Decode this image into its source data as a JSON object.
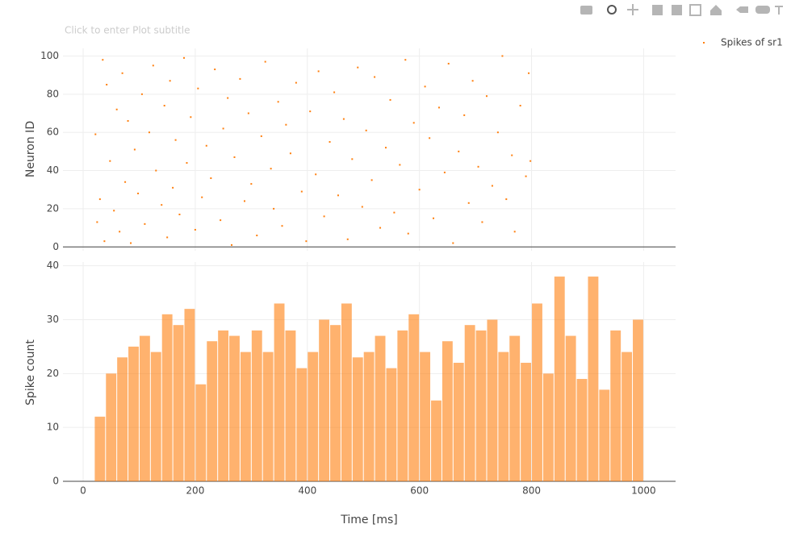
{
  "chart_data": [
    {
      "type": "scatter",
      "subtitle": "Click to enter Plot subtitle",
      "ylabel": "Neuron ID",
      "xlim": [
        -36,
        1057
      ],
      "xticks": [
        0,
        200,
        400,
        600,
        800,
        1000
      ],
      "ylim": [
        -2,
        104
      ],
      "yticks": [
        0,
        20,
        40,
        60,
        80,
        100
      ],
      "grid": true,
      "series": [
        {
          "name": "Spikes of sr1",
          "color": "#ff7f0e",
          "x": [
            22,
            25,
            30,
            35,
            38,
            42,
            48,
            55,
            60,
            65,
            70,
            75,
            80,
            85,
            92,
            98,
            105,
            110,
            118,
            125,
            130,
            140,
            145,
            150,
            155,
            160,
            165,
            172,
            180,
            185,
            192,
            200,
            205,
            212,
            220,
            228,
            235,
            245,
            250,
            258,
            265,
            270,
            280,
            288,
            295,
            300,
            310,
            318,
            325,
            335,
            340,
            348,
            355,
            362,
            370,
            380,
            390,
            398,
            405,
            415,
            420,
            430,
            440,
            448,
            455,
            465,
            472,
            480,
            490,
            498,
            505,
            515,
            520,
            530,
            540,
            548,
            555,
            565,
            575,
            580,
            590,
            600,
            610,
            618,
            625,
            635,
            645,
            652,
            660,
            670,
            680,
            688,
            695,
            705,
            712,
            720,
            730,
            740,
            748,
            755,
            765,
            770,
            780,
            790,
            795,
            798
          ],
          "values": [
            59,
            13,
            25,
            98,
            3,
            85,
            45,
            19,
            72,
            8,
            91,
            34,
            66,
            2,
            51,
            28,
            80,
            12,
            60,
            95,
            40,
            22,
            74,
            5,
            87,
            31,
            56,
            17,
            99,
            44,
            68,
            9,
            83,
            26,
            53,
            36,
            93,
            14,
            62,
            78,
            1,
            47,
            88,
            24,
            70,
            33,
            6,
            58,
            97,
            41,
            20,
            76,
            11,
            64,
            49,
            86,
            29,
            3,
            71,
            38,
            92,
            16,
            55,
            81,
            27,
            67,
            4,
            46,
            94,
            21,
            61,
            35,
            89,
            10,
            52,
            77,
            18,
            43,
            98,
            7,
            65,
            30,
            84,
            57,
            15,
            73,
            39,
            96,
            2,
            50,
            69,
            23,
            87,
            42,
            13,
            79,
            32,
            60,
            100,
            25,
            48,
            8,
            74,
            37,
            91,
            45
          ]
        }
      ]
    },
    {
      "type": "histogram",
      "ylabel": "Spike count",
      "xlabel": "Time [ms]",
      "xlim": [
        -36,
        1057
      ],
      "xticks": [
        0,
        200,
        400,
        600,
        800,
        1000
      ],
      "ylim": [
        0,
        40.7
      ],
      "yticks": [
        0,
        10,
        20,
        30,
        40
      ],
      "grid": true,
      "color": "#ff7f0e",
      "opacity": 0.6,
      "bins": [
        20,
        40,
        60,
        80,
        100,
        120,
        140,
        160,
        180,
        200,
        220,
        240,
        260,
        280,
        300,
        320,
        340,
        360,
        380,
        400,
        420,
        440,
        460,
        480,
        500,
        520,
        540,
        560,
        580,
        600,
        620,
        640,
        660,
        680,
        700,
        720,
        740,
        760,
        780,
        800,
        820,
        840,
        860,
        880,
        900,
        920,
        940,
        960,
        980,
        1000
      ],
      "values": [
        12,
        20,
        23,
        25,
        27,
        24,
        31,
        29,
        32,
        18,
        26,
        28,
        27,
        24,
        28,
        24,
        33,
        28,
        21,
        24,
        30,
        29,
        33,
        23,
        24,
        27,
        21,
        28,
        31,
        24,
        15,
        26,
        22,
        29,
        28,
        30,
        24,
        27,
        22,
        33,
        20,
        38,
        27,
        19,
        38,
        17,
        28,
        24,
        30
      ]
    }
  ]
}
